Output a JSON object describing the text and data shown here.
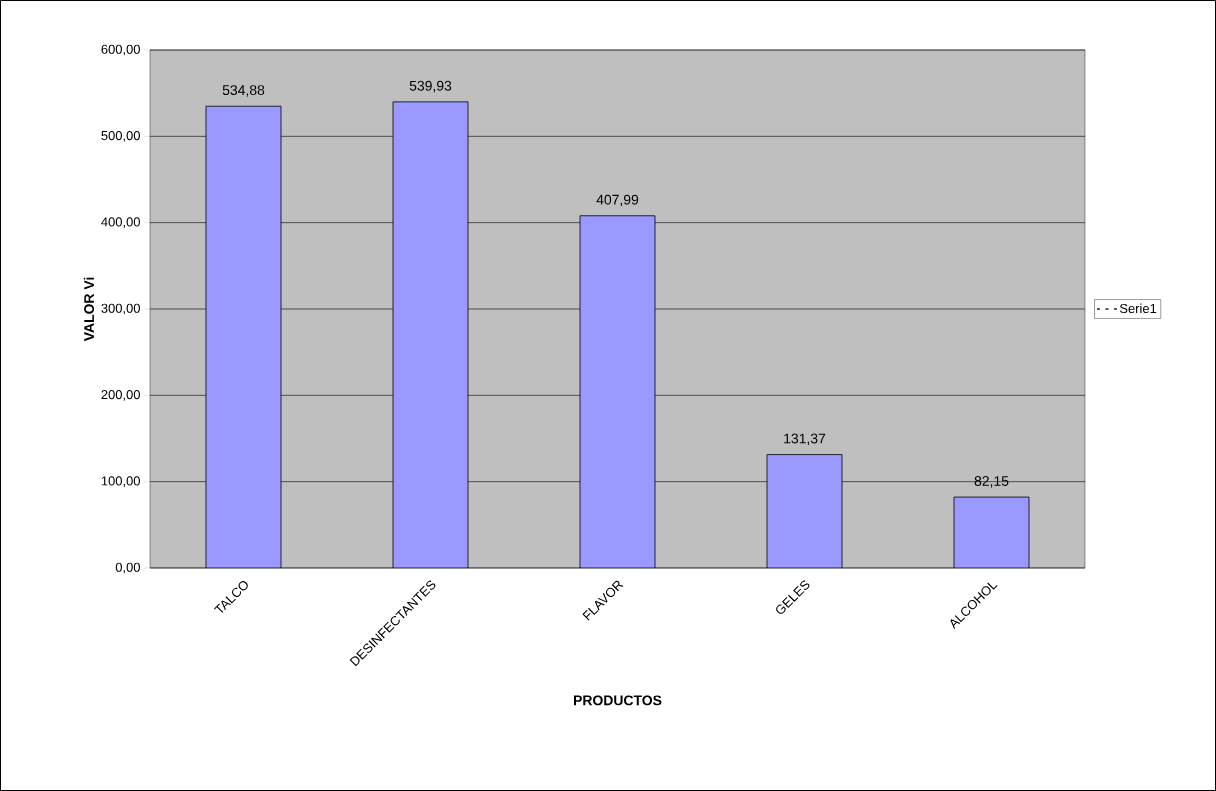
{
  "chart_data": {
    "type": "bar",
    "xlabel": "PRODUCTOS",
    "ylabel": "VALOR Vi",
    "categories": [
      "TALCO",
      "DESINFECTANTES",
      "FLAVOR",
      "GELES",
      "ALCOHOL"
    ],
    "series": [
      {
        "name": "Serie1",
        "color": "#9999ff",
        "values": [
          534.88,
          539.93,
          407.99,
          131.37,
          82.15
        ],
        "value_labels": [
          "534,88",
          "539,93",
          "407,99",
          "131,37",
          "82,15"
        ]
      }
    ],
    "ylim": [
      0,
      600
    ],
    "yticks": [
      {
        "value": 0,
        "label": "0,00"
      },
      {
        "value": 100,
        "label": "100,00"
      },
      {
        "value": 200,
        "label": "200,00"
      },
      {
        "value": 300,
        "label": "300,00"
      },
      {
        "value": 400,
        "label": "400,00"
      },
      {
        "value": 500,
        "label": "500,00"
      },
      {
        "value": 600,
        "label": "600,00"
      }
    ],
    "grid": "y",
    "legend": "right"
  }
}
